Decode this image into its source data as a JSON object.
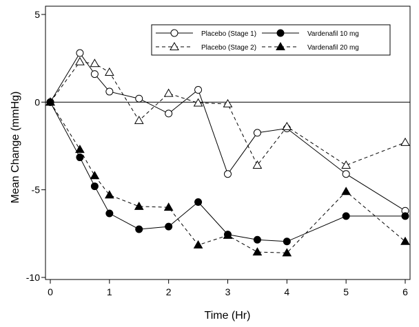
{
  "chart_data": {
    "type": "line",
    "xlabel": "Time (Hr)",
    "ylabel": "Mean Change (mmHg)",
    "xlim": [
      0,
      6
    ],
    "ylim": [
      -10,
      5
    ],
    "xticks": [
      "0",
      "1",
      "2",
      "3",
      "4",
      "5",
      "6"
    ],
    "yticks": [
      "5",
      "0",
      "-5",
      "-10"
    ],
    "grid": false,
    "reference_line_y": 0,
    "legend_position": "top-right",
    "series": [
      {
        "name": "Placebo (Stage 1)",
        "line_style": "solid",
        "marker": "open-circle",
        "x": [
          0,
          0.5,
          0.75,
          1,
          1.5,
          2,
          2.5,
          3,
          3.5,
          4,
          5,
          6
        ],
        "y": [
          0,
          2.8,
          1.6,
          0.6,
          0.2,
          -0.65,
          0.7,
          -4.1,
          -1.75,
          -1.5,
          -4.1,
          -6.2
        ]
      },
      {
        "name": "Placebo (Stage 2)",
        "line_style": "dashed",
        "marker": "open-triangle",
        "x": [
          0,
          0.5,
          0.75,
          1,
          1.5,
          2,
          2.5,
          3,
          3.5,
          4,
          5,
          6
        ],
        "y": [
          0,
          2.3,
          2.2,
          1.7,
          -1.05,
          0.5,
          -0.05,
          -0.1,
          -3.6,
          -1.4,
          -3.6,
          -2.3
        ]
      },
      {
        "name": "Vardenafil 10 mg",
        "line_style": "solid",
        "marker": "filled-circle",
        "x": [
          0,
          0.5,
          0.75,
          1,
          1.5,
          2,
          2.5,
          3,
          3.5,
          4,
          5,
          6
        ],
        "y": [
          0,
          -3.15,
          -4.8,
          -6.35,
          -7.25,
          -7.1,
          -5.7,
          -7.55,
          -7.85,
          -7.95,
          -6.5,
          -6.5
        ]
      },
      {
        "name": "Vardenafil 20 mg",
        "line_style": "dashed",
        "marker": "filled-triangle",
        "x": [
          0,
          0.5,
          0.75,
          1,
          1.5,
          2,
          2.5,
          3,
          3.5,
          4,
          5,
          6
        ],
        "y": [
          0,
          -2.7,
          -4.2,
          -5.3,
          -5.95,
          -6.0,
          -8.15,
          -7.6,
          -8.55,
          -8.6,
          -5.1,
          -7.95
        ]
      }
    ]
  }
}
